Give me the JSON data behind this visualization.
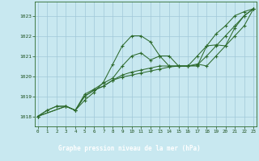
{
  "background_color": "#c8e8f0",
  "grid_color": "#a0c8d8",
  "line_color": "#2d6a2d",
  "label_bg_color": "#2d6a2d",
  "label_text_color": "#ffffff",
  "ylim": [
    1017.5,
    1023.7
  ],
  "xlim": [
    -0.3,
    23.3
  ],
  "yticks": [
    1018,
    1019,
    1020,
    1021,
    1022,
    1023
  ],
  "xtick_labels": [
    "0",
    "1",
    "2",
    "3",
    "4",
    "5",
    "6",
    "7",
    "8",
    "9",
    "10",
    "11",
    "12",
    "13",
    "14",
    "15",
    "16",
    "17",
    "18",
    "19",
    "20",
    "21",
    "22",
    "23"
  ],
  "xticks": [
    0,
    1,
    2,
    3,
    4,
    5,
    6,
    7,
    8,
    9,
    10,
    11,
    12,
    13,
    14,
    15,
    16,
    17,
    18,
    19,
    20,
    21,
    22,
    23
  ],
  "xlabel": "Graphe pression niveau de la mer (hPa)",
  "series": [
    {
      "x": [
        0,
        1,
        2,
        3,
        4,
        5,
        6,
        7,
        8,
        9,
        10,
        11,
        12,
        13,
        14,
        15,
        16,
        17,
        18,
        19,
        20,
        21,
        22,
        23
      ],
      "y": [
        1018.0,
        1018.3,
        1018.5,
        1018.5,
        1018.3,
        1018.8,
        1019.2,
        1019.7,
        1020.6,
        1021.5,
        1022.0,
        1022.0,
        1021.7,
        1021.0,
        1021.0,
        1020.5,
        1020.5,
        1020.5,
        1021.5,
        1022.1,
        1022.5,
        1023.0,
        1023.2,
        1023.35
      ]
    },
    {
      "x": [
        0,
        1,
        2,
        3,
        4,
        5,
        6,
        7,
        8,
        9,
        10,
        11,
        12,
        13,
        14,
        15,
        16,
        17,
        18,
        19,
        20,
        21,
        22,
        23
      ],
      "y": [
        1018.0,
        1018.3,
        1018.5,
        1018.5,
        1018.3,
        1019.0,
        1019.3,
        1019.5,
        1019.8,
        1019.95,
        1020.05,
        1020.15,
        1020.25,
        1020.35,
        1020.45,
        1020.5,
        1020.5,
        1020.55,
        1021.0,
        1021.5,
        1022.0,
        1022.5,
        1023.0,
        1023.35
      ]
    },
    {
      "x": [
        0,
        3,
        4,
        5,
        6,
        7,
        8,
        9,
        10,
        11,
        12,
        13,
        14,
        15,
        16,
        17,
        18,
        19,
        20,
        21,
        22,
        23
      ],
      "y": [
        1018.0,
        1018.5,
        1018.3,
        1019.1,
        1019.35,
        1019.65,
        1019.9,
        1020.5,
        1021.0,
        1021.15,
        1020.8,
        1021.0,
        1020.5,
        1020.5,
        1020.5,
        1021.0,
        1021.5,
        1021.55,
        1021.5,
        1022.4,
        1023.0,
        1023.35
      ]
    },
    {
      "x": [
        0,
        3,
        4,
        5,
        6,
        7,
        8,
        9,
        10,
        11,
        12,
        13,
        14,
        15,
        16,
        17,
        18,
        19,
        20,
        21,
        22,
        23
      ],
      "y": [
        1018.0,
        1018.5,
        1018.3,
        1019.0,
        1019.3,
        1019.5,
        1019.8,
        1020.05,
        1020.2,
        1020.3,
        1020.4,
        1020.5,
        1020.5,
        1020.5,
        1020.5,
        1020.6,
        1020.5,
        1021.0,
        1021.5,
        1022.0,
        1022.5,
        1023.35
      ]
    }
  ]
}
